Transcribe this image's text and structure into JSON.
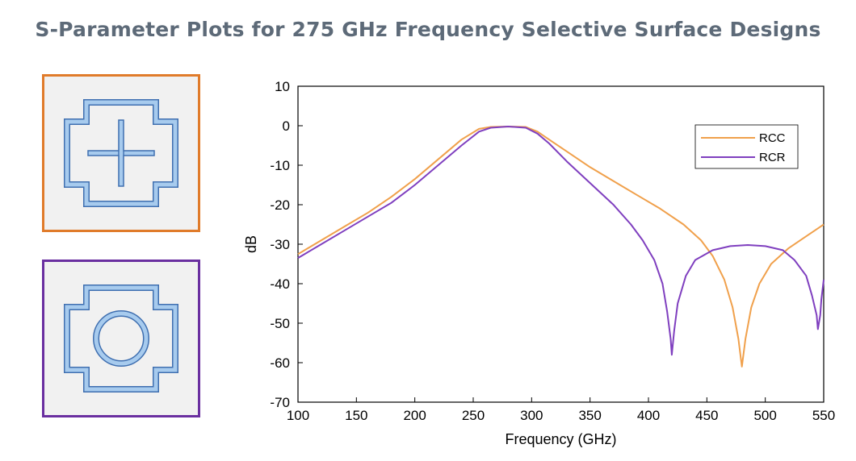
{
  "title": "S-Parameter Plots for 275 GHz Frequency Selective Surface Designs",
  "panels": [
    {
      "icon": "cross-slot-unit-cell-icon",
      "border_color": "#e07b2a"
    },
    {
      "icon": "ring-slot-unit-cell-icon",
      "border_color": "#6a2fa0"
    }
  ],
  "chart_data": {
    "type": "line",
    "title": "",
    "xlabel": "Frequency (GHz)",
    "ylabel": "dB",
    "xlim": [
      100,
      550
    ],
    "ylim": [
      -70,
      10
    ],
    "xticks": [
      "100",
      "150",
      "200",
      "250",
      "300",
      "350",
      "400",
      "450",
      "500",
      "550"
    ],
    "yticks": [
      "10",
      "0",
      "-10",
      "-20",
      "-30",
      "-40",
      "-50",
      "-60",
      "-70"
    ],
    "grid": false,
    "legend_position": "top-right",
    "series": [
      {
        "name": "RCC",
        "color": "#f0a04b",
        "points": [
          [
            100,
            -32.5
          ],
          [
            120,
            -29
          ],
          [
            140,
            -25.5
          ],
          [
            160,
            -22
          ],
          [
            180,
            -18
          ],
          [
            200,
            -13.5
          ],
          [
            220,
            -8.5
          ],
          [
            240,
            -3.5
          ],
          [
            255,
            -0.8
          ],
          [
            265,
            -0.3
          ],
          [
            280,
            -0.2
          ],
          [
            295,
            -0.3
          ],
          [
            305,
            -1.5
          ],
          [
            315,
            -3.5
          ],
          [
            330,
            -6.5
          ],
          [
            350,
            -10.5
          ],
          [
            370,
            -14
          ],
          [
            390,
            -17.5
          ],
          [
            410,
            -21
          ],
          [
            430,
            -25
          ],
          [
            445,
            -29
          ],
          [
            455,
            -33
          ],
          [
            465,
            -39
          ],
          [
            472,
            -46
          ],
          [
            477,
            -54
          ],
          [
            480,
            -61
          ],
          [
            483,
            -54
          ],
          [
            488,
            -46
          ],
          [
            495,
            -40
          ],
          [
            505,
            -35
          ],
          [
            520,
            -31
          ],
          [
            535,
            -28
          ],
          [
            550,
            -25
          ]
        ]
      },
      {
        "name": "RCR",
        "color": "#7f3fbf",
        "points": [
          [
            100,
            -33.5
          ],
          [
            120,
            -30
          ],
          [
            140,
            -26.5
          ],
          [
            160,
            -23
          ],
          [
            180,
            -19.5
          ],
          [
            200,
            -15
          ],
          [
            220,
            -10
          ],
          [
            240,
            -5
          ],
          [
            255,
            -1.5
          ],
          [
            265,
            -0.5
          ],
          [
            280,
            -0.2
          ],
          [
            295,
            -0.5
          ],
          [
            305,
            -2
          ],
          [
            315,
            -4.5
          ],
          [
            330,
            -9
          ],
          [
            350,
            -14.5
          ],
          [
            370,
            -20
          ],
          [
            385,
            -25
          ],
          [
            395,
            -29
          ],
          [
            405,
            -34
          ],
          [
            412,
            -40
          ],
          [
            416,
            -47
          ],
          [
            419,
            -54
          ],
          [
            420,
            -58
          ],
          [
            422,
            -52
          ],
          [
            425,
            -45
          ],
          [
            432,
            -38
          ],
          [
            440,
            -34
          ],
          [
            455,
            -31.5
          ],
          [
            470,
            -30.5
          ],
          [
            485,
            -30.2
          ],
          [
            500,
            -30.5
          ],
          [
            515,
            -31.5
          ],
          [
            525,
            -34
          ],
          [
            535,
            -38
          ],
          [
            540,
            -43
          ],
          [
            544,
            -48
          ],
          [
            545,
            -51.5
          ],
          [
            547,
            -48
          ],
          [
            548,
            -44
          ],
          [
            550,
            -39
          ]
        ]
      }
    ]
  }
}
